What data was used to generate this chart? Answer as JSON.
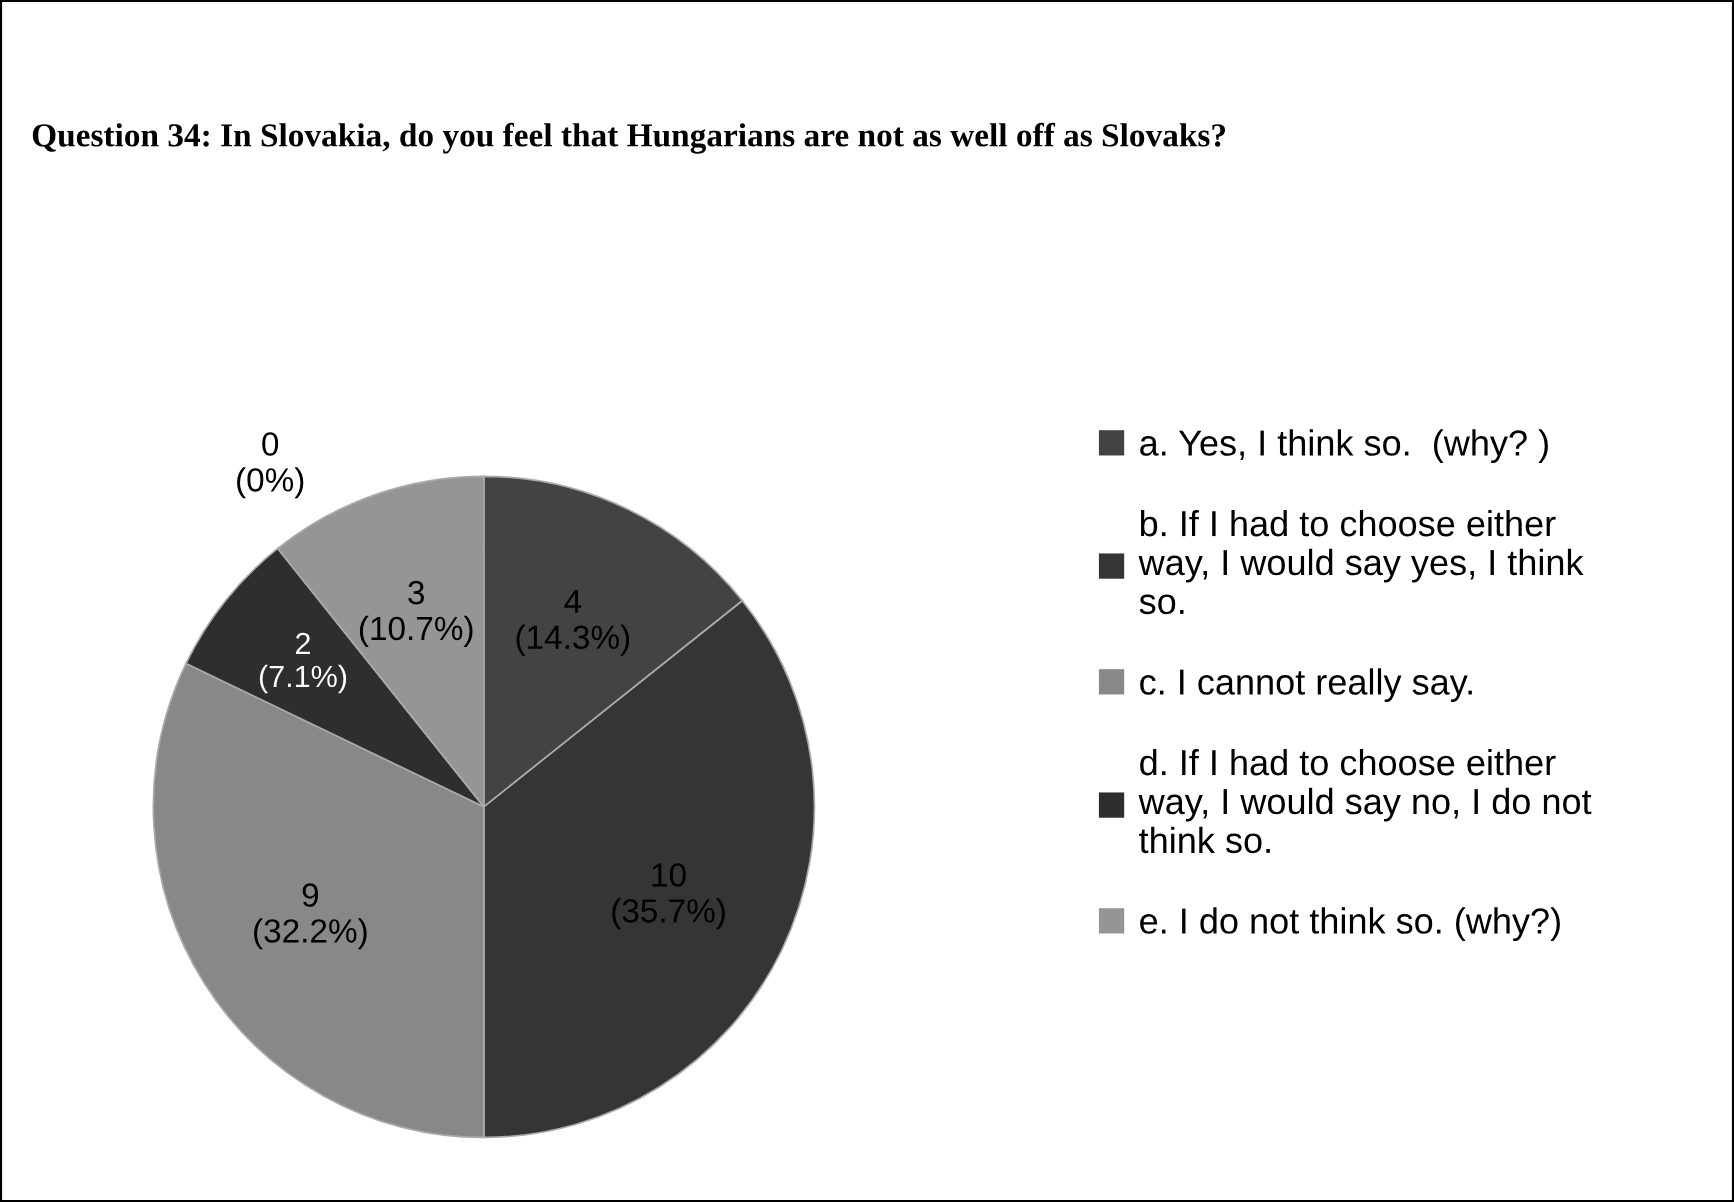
{
  "chart_data": {
    "type": "pie",
    "title": "Question 34: In Slovakia, do you feel that Hungarians are not as well off as Slovaks?",
    "categories": [
      "a. Yes, I think so.  (why? )",
      "b. If I had to choose either\nway, I would say yes, I think\nso.",
      "c. I cannot really say.",
      "d. If I had to choose either\nway, I would say no, I do not\nthink so.",
      null,
      "e. I do not think so. (why?)"
    ],
    "values": [
      4,
      10,
      9,
      2,
      0,
      3
    ],
    "value_labels": [
      "4\n(14.3%)",
      "10\n(35.7%)",
      "9\n(32.2%)",
      "2\n(7.1%)",
      "0\n(0%)",
      "3\n(10.7%)"
    ],
    "colors": [
      "#434343",
      "#353535",
      "#888888",
      "#2e2e2e",
      "#5a5a5a",
      "#959595"
    ],
    "legend": "right"
  }
}
